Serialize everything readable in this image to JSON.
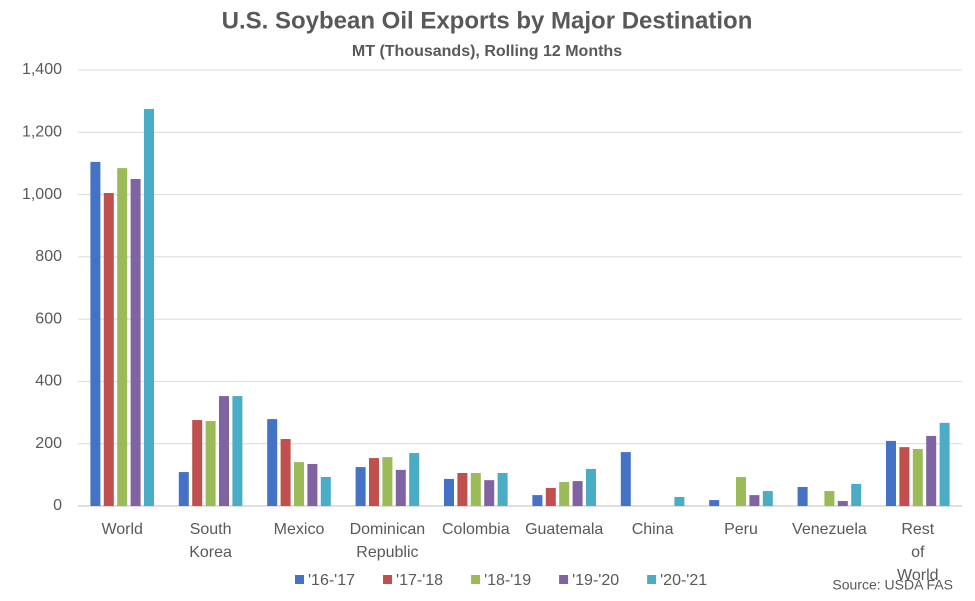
{
  "chart_data": {
    "type": "bar",
    "title": "U.S. Soybean Oil Exports by Major Destination",
    "subtitle": "MT (Thousands), Rolling 12 Months",
    "source": "Source: USDA FAS",
    "categories": [
      "World",
      "South Korea",
      "Mexico",
      "Dominican Republic",
      "Colombia",
      "Guatemala",
      "China",
      "Peru",
      "Venezuela",
      "Rest of World"
    ],
    "series": [
      {
        "name": "'16-'17",
        "color": "#4472c4",
        "values": [
          1105,
          109,
          279,
          125,
          87,
          35,
          173,
          19,
          61,
          209
        ]
      },
      {
        "name": "'17-'18",
        "color": "#c0504d",
        "values": [
          1005,
          276,
          215,
          154,
          106,
          58,
          0,
          0,
          0,
          189
        ]
      },
      {
        "name": "'18-'19",
        "color": "#9bbb59",
        "values": [
          1085,
          273,
          141,
          157,
          106,
          77,
          0,
          93,
          48,
          183
        ]
      },
      {
        "name": "'19-'20",
        "color": "#8064a2",
        "values": [
          1050,
          353,
          135,
          116,
          83,
          80,
          0,
          35,
          16,
          225
        ]
      },
      {
        "name": "'20-'21",
        "color": "#4bacc6",
        "values": [
          1275,
          353,
          93,
          170,
          106,
          119,
          29,
          48,
          71,
          267
        ]
      }
    ],
    "ylim": [
      0,
      1400
    ],
    "yticks": [
      0,
      200,
      400,
      600,
      800,
      {
        "value": 1000,
        "label": "1,000"
      },
      {
        "value": 1200,
        "label": "1,200"
      },
      {
        "value": 1400,
        "label": "1,400"
      }
    ],
    "grid": true,
    "legend": "bottom"
  }
}
